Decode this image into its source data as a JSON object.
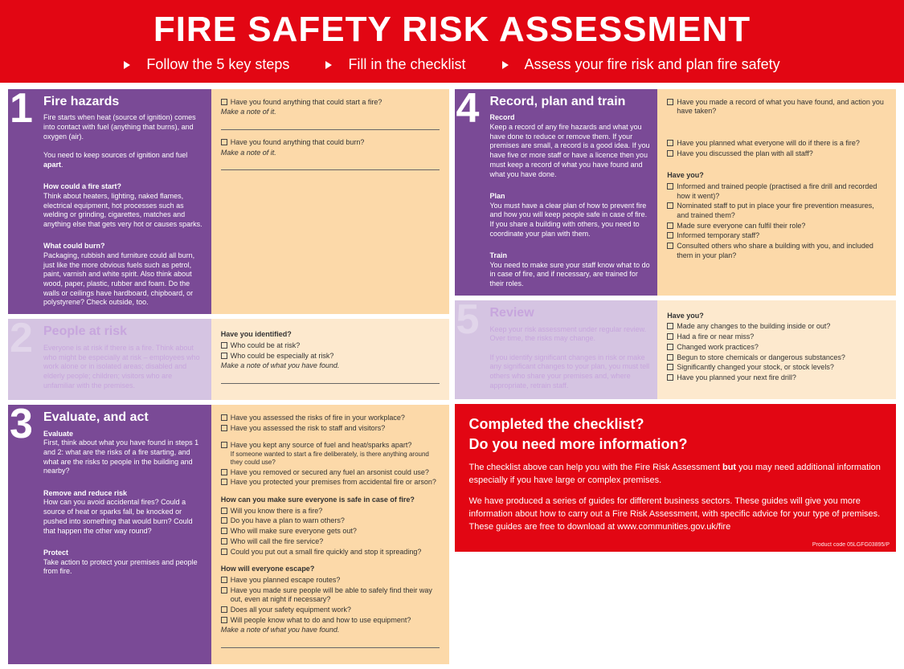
{
  "colors": {
    "header_bg": "#e20613",
    "footer_bg": "#e20613",
    "step1_left": "#7a4a96",
    "step1_right": "#fcd9a9",
    "step2_left": "#d5c4e2",
    "step2_right": "#fde9ce",
    "step3_left": "#7a4a96",
    "step3_right": "#fcd9a9",
    "step4_left": "#7a4a96",
    "step4_right": "#fcd9a9",
    "step5_left": "#d5c4e2",
    "step5_right": "#fde9ce"
  },
  "header": {
    "title": "FIRE SAFETY RISK ASSESSMENT",
    "subs": [
      "Follow the 5 key steps",
      "Fill in the checklist",
      "Assess your fire risk and plan fire safety"
    ]
  },
  "steps": [
    {
      "num": "1",
      "title": "Fire hazards",
      "left_html": "Fire starts when heat (source of ignition) comes into contact with fuel (anything that burns), and oxygen (air).<br><br>You need to keep sources of ignition and fuel <b>apart</b>.<br><br><strong>How could a fire start?</strong>Think about heaters, lighting, naked flames, electrical equipment, hot processes such as welding or grinding, cigarettes, matches and anything else that gets very hot or causes sparks.<br><br><strong>What could burn?</strong>Packaging, rubbish and furniture could all burn, just like the more obvious fuels such as petrol, paint, varnish and white spirit. Also think about wood, paper, plastic, rubber and foam. Do the walls or ceilings have hardboard, chipboard, or polystyrene? Check outside, too.",
      "right_blocks": [
        {
          "checks": [
            "Have you found anything that could start a fire?"
          ],
          "hint": "Make a note of it.",
          "line": true
        },
        {
          "checks": [
            "Have you found anything that could burn?"
          ],
          "hint": "Make a note of it.",
          "line": true
        }
      ]
    },
    {
      "num": "2",
      "faded": true,
      "title": "People at risk",
      "left_html": "Everyone is at risk if there is a fire. Think about who might be especially at risk – employees who work alone or in isolated areas; disabled and elderly people; children; visitors who are unfamiliar with the premises.",
      "right_blocks": [
        {
          "q": "Have you identified?",
          "checks": [
            "Who could be at risk?",
            "Who could be especially at risk?"
          ],
          "hint": "Make a note of what you have found.",
          "line": true
        }
      ]
    },
    {
      "num": "3",
      "title": "Evaluate, and act",
      "left_html": "<strong>Evaluate</strong>First, think about what you have found in steps 1 and 2: what are the risks of a fire starting, and what are the risks to people in the building and nearby?<br><br><strong>Remove and reduce risk</strong>How can you avoid accidental fires? Could a source of heat or sparks fall, be knocked or pushed into something that would burn? Could that happen the other way round?<br><br><strong>Protect</strong>Take action to protect your premises and people from fire.",
      "right_blocks": [
        {
          "checks": [
            "Have you assessed the risks of fire in your workplace?",
            "Have you assessed the risk to staff and visitors?"
          ]
        },
        {
          "checks": [
            "Have you kept any source of fuel and heat/sparks apart?|If someone wanted to start a fire deliberately, is there anything around they could use?",
            "Have you removed or secured any fuel an arsonist could use?",
            "Have you protected your premises from accidental fire or arson?"
          ]
        },
        {
          "q": "How can you make sure everyone is safe in case of fire?",
          "checks": [
            "Will you know there is a fire?",
            "Do you have a plan to warn others?",
            "Who will make sure everyone gets out?",
            "Who will call the fire service?",
            "Could you put out a small fire quickly and stop it spreading?"
          ]
        },
        {
          "q": "How will everyone escape?",
          "checks": [
            "Have you planned escape routes?",
            "Have you made sure people will be able to safely find their way out, even at night if necessary?",
            "Does all your safety equipment work?",
            "Will people know what to do and how to use equipment?"
          ],
          "hint": "Make a note of what you have found.",
          "line": true
        }
      ]
    },
    {
      "num": "4",
      "title": "Record, plan and train",
      "left_html": "<strong>Record</strong>Keep a record of any fire hazards and what you have done to reduce or remove them. If your premises are small, a record is a good idea. If you have five or more staff or have a licence then you must keep a record of what you have found and what you have done.<br><br><strong>Plan</strong>You must have a clear plan of how to prevent fire and how you will keep people safe in case of fire. If you share a building with others, you need to coordinate your plan with them.<br><br><strong>Train</strong>You need to make sure your staff know what to do in case of fire, and if necessary, are trained for their roles.",
      "right_blocks": [
        {
          "checks": [
            "Have you made a record of what you have found, and action you have taken?"
          ],
          "gap": 28
        },
        {
          "checks": [
            "Have you planned what everyone will do if there is a fire?",
            "Have you discussed the plan with all staff?"
          ],
          "gap": 16
        },
        {
          "q": "Have you?",
          "checks": [
            "Informed and trained people (practised a fire drill and recorded how it went)?",
            "Nominated staff to put in place your fire prevention measures, and trained them?",
            "Made sure everyone can fulfil their role?",
            "Informed temporary staff?",
            "Consulted others who share a building with you, and included them in your plan?"
          ]
        }
      ]
    },
    {
      "num": "5",
      "faded": true,
      "title": "Review",
      "left_html": "Keep your risk assessment under regular review. Over time, the risks may change.<br><br>If you identify significant changes in risk or make any significant changes to your plan, you must tell others who share your premises and, where appropriate, retrain staff.",
      "right_blocks": [
        {
          "q": "Have you?",
          "checks": [
            "Made any changes to the building inside or out?",
            "Had a fire or near miss?",
            "Changed work practices?",
            "Begun to store chemicals or dangerous substances?",
            "Significantly changed your stock, or stock levels?",
            "Have you planned your next fire drill?"
          ]
        }
      ]
    }
  ],
  "footer": {
    "h1": "Completed the checklist?",
    "h2": "Do you need more information?",
    "p1": "The checklist above can help you with the Fire Risk Assessment <b>but</b> you may need additional information especially if you have large or complex premises.",
    "p2": "We have produced a series of guides for different business sectors. These guides will give you more information about how to carry out a Fire Risk Assessment, with specific advice for your type of premises. These guides are free to download at www.communities.gov.uk/fire",
    "code": "Product code 05LGFG03895/P"
  }
}
